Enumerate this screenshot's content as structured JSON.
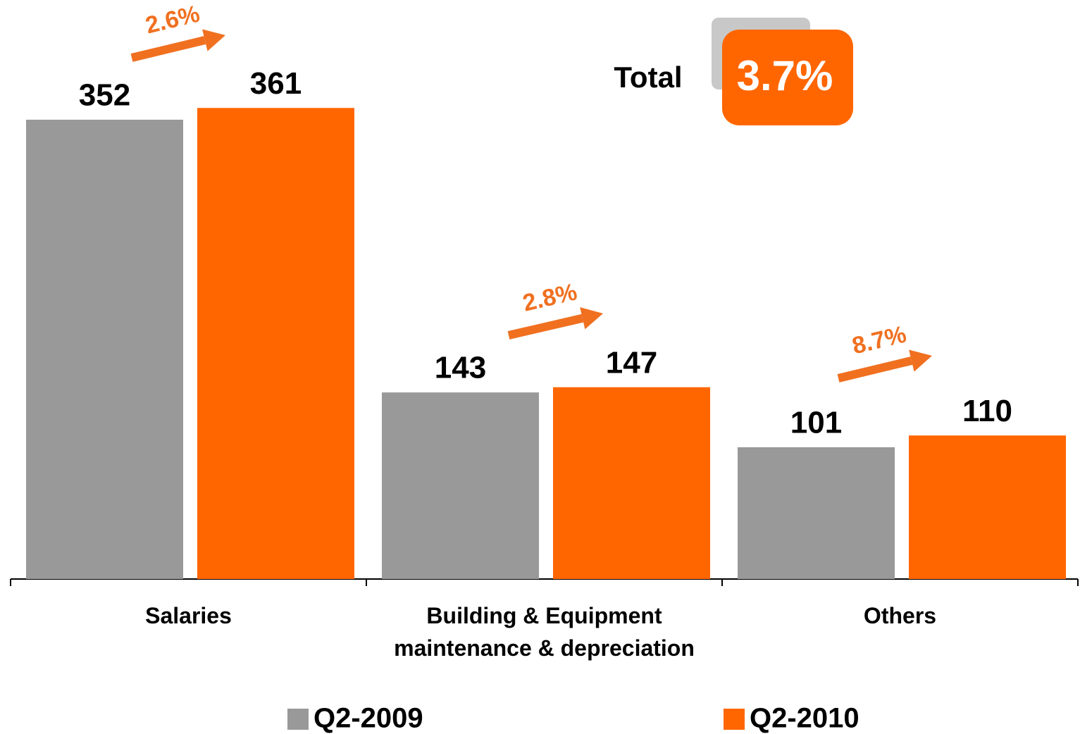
{
  "chart_data": {
    "type": "bar",
    "categories": [
      "Salaries",
      "Building & Equipment\nmaintenance & depreciation",
      "Others"
    ],
    "series": [
      {
        "name": "Q2-2009",
        "color": "#999999",
        "values": [
          352,
          143,
          101
        ]
      },
      {
        "name": "Q2-2010",
        "color": "#ff6600",
        "values": [
          361,
          147,
          110
        ]
      }
    ],
    "ylim": [
      0,
      400
    ],
    "annotations": [
      "2.6%",
      "2.8%",
      "8.7%"
    ],
    "total_label": "Total",
    "total_value": "3.7%"
  }
}
